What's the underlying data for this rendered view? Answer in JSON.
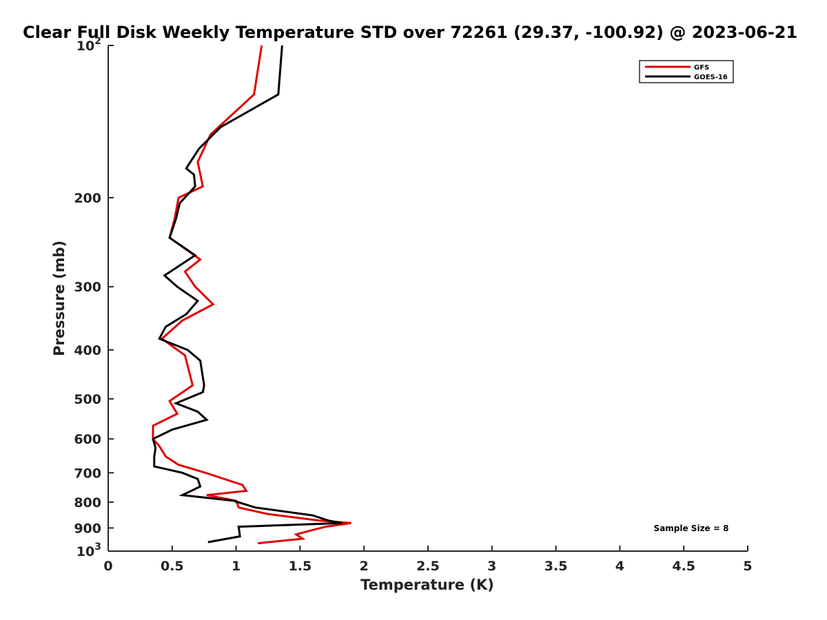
{
  "chart_data": {
    "type": "line",
    "title": "Clear Full Disk Weekly Temperature STD over 72261 (29.37, -100.92) @ 2023-06-21",
    "xlabel": "Temperature (K)",
    "ylabel": "Pressure (mb)",
    "xlim": [
      0,
      5
    ],
    "ylim": [
      100,
      1000
    ],
    "y_scale": "log",
    "y_reversed": true,
    "grid": false,
    "legend_position": "top-right",
    "x_ticks": [
      0,
      0.5,
      1,
      1.5,
      2,
      2.5,
      3,
      3.5,
      4,
      4.5,
      5
    ],
    "x_tick_labels": [
      "0",
      "0.5",
      "1",
      "1.5",
      "2",
      "2.5",
      "3",
      "3.5",
      "4",
      "4.5",
      "5"
    ],
    "y_ticks": [
      {
        "value": 100,
        "base": "10",
        "exp": "2"
      },
      {
        "value": 200,
        "label": "200"
      },
      {
        "value": 300,
        "label": "300"
      },
      {
        "value": 400,
        "label": "400"
      },
      {
        "value": 500,
        "label": "500"
      },
      {
        "value": 600,
        "label": "600"
      },
      {
        "value": 700,
        "label": "700"
      },
      {
        "value": 800,
        "label": "800"
      },
      {
        "value": 900,
        "label": "900"
      },
      {
        "value": 1000,
        "base": "10",
        "exp": "3"
      }
    ],
    "annotation": "Sample Size = 8",
    "series": [
      {
        "name": "GFS",
        "color": "#e00000",
        "points": [
          [
            1.2,
            100
          ],
          [
            1.14,
            125
          ],
          [
            0.8,
            150
          ],
          [
            0.7,
            170
          ],
          [
            0.74,
            190
          ],
          [
            0.55,
            200
          ],
          [
            0.52,
            220
          ],
          [
            0.48,
            240
          ],
          [
            0.72,
            265
          ],
          [
            0.6,
            280
          ],
          [
            0.68,
            300
          ],
          [
            0.82,
            325
          ],
          [
            0.58,
            350
          ],
          [
            0.42,
            380
          ],
          [
            0.6,
            410
          ],
          [
            0.66,
            470
          ],
          [
            0.48,
            505
          ],
          [
            0.54,
            535
          ],
          [
            0.35,
            565
          ],
          [
            0.35,
            600
          ],
          [
            0.4,
            620
          ],
          [
            0.45,
            650
          ],
          [
            0.55,
            675
          ],
          [
            0.76,
            700
          ],
          [
            1.05,
            740
          ],
          [
            1.08,
            760
          ],
          [
            0.77,
            775
          ],
          [
            1.0,
            795
          ],
          [
            1.02,
            820
          ],
          [
            1.25,
            845
          ],
          [
            1.65,
            870
          ],
          [
            1.9,
            880
          ],
          [
            1.7,
            895
          ],
          [
            1.55,
            915
          ],
          [
            1.47,
            927
          ],
          [
            1.52,
            945
          ],
          [
            1.17,
            965
          ]
        ]
      },
      {
        "name": "GOES-16",
        "color": "#000000",
        "points": [
          [
            1.36,
            100
          ],
          [
            1.33,
            125
          ],
          [
            0.88,
            145
          ],
          [
            0.71,
            160
          ],
          [
            0.61,
            175
          ],
          [
            0.67,
            180
          ],
          [
            0.68,
            190
          ],
          [
            0.56,
            205
          ],
          [
            0.53,
            220
          ],
          [
            0.48,
            240
          ],
          [
            0.68,
            260
          ],
          [
            0.44,
            285
          ],
          [
            0.54,
            300
          ],
          [
            0.7,
            320
          ],
          [
            0.61,
            340
          ],
          [
            0.45,
            360
          ],
          [
            0.4,
            380
          ],
          [
            0.62,
            400
          ],
          [
            0.72,
            420
          ],
          [
            0.75,
            470
          ],
          [
            0.74,
            485
          ],
          [
            0.53,
            510
          ],
          [
            0.7,
            530
          ],
          [
            0.77,
            550
          ],
          [
            0.5,
            575
          ],
          [
            0.35,
            600
          ],
          [
            0.37,
            625
          ],
          [
            0.36,
            650
          ],
          [
            0.36,
            680
          ],
          [
            0.58,
            700
          ],
          [
            0.7,
            720
          ],
          [
            0.72,
            745
          ],
          [
            0.58,
            775
          ],
          [
            0.98,
            795
          ],
          [
            1.15,
            820
          ],
          [
            1.6,
            850
          ],
          [
            1.72,
            870
          ],
          [
            1.83,
            880
          ],
          [
            1.02,
            895
          ],
          [
            1.03,
            935
          ],
          [
            0.78,
            960
          ]
        ]
      }
    ]
  }
}
